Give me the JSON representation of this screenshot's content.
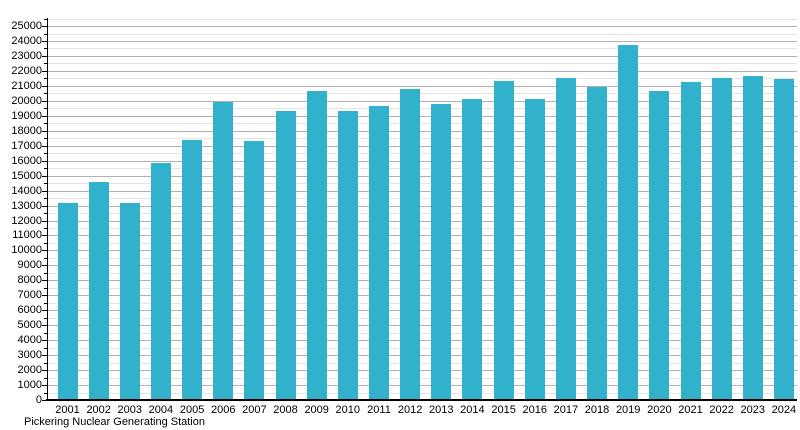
{
  "chart_data": {
    "type": "bar",
    "title": "",
    "caption": "Pickering Nuclear Generating Station",
    "categories": [
      "2001",
      "2002",
      "2003",
      "2004",
      "2005",
      "2006",
      "2007",
      "2008",
      "2009",
      "2010",
      "2011",
      "2012",
      "2013",
      "2014",
      "2015",
      "2016",
      "2017",
      "2018",
      "2019",
      "2020",
      "2021",
      "2022",
      "2023",
      "2024"
    ],
    "values": [
      13150,
      14550,
      13150,
      15850,
      17400,
      19950,
      17300,
      19300,
      20650,
      19300,
      19650,
      20800,
      19800,
      20150,
      21350,
      20100,
      21550,
      20950,
      23700,
      20650,
      21250,
      21500,
      21650,
      21450
    ],
    "xlabel": "",
    "ylabel": "",
    "ylim": [
      0,
      25500
    ],
    "y_major_step": 1000,
    "y_minor_step": 500,
    "y_label_max": 25000,
    "bar_color": "#32b1cd",
    "major_grid_color": "#b0b0b0",
    "minor_grid_color": "#e4e4e4",
    "axis_color": "#000000",
    "legend": null,
    "grid": "on"
  }
}
